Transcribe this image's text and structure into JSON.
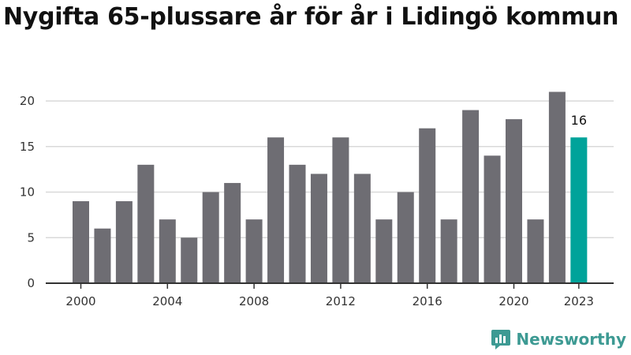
{
  "title": "Nygifta 65-plussare år för år i Lidingö kommun",
  "brand": {
    "name": "Newsworthy",
    "color": "#3d9a93",
    "icon": "newsworthy-logo-icon"
  },
  "colors": {
    "bar": "#6e6d73",
    "highlight": "#00a39a",
    "grid": "#d9d9d9",
    "axis": "#333333"
  },
  "chart_data": {
    "type": "bar",
    "categories": [
      "2000",
      "2001",
      "2002",
      "2003",
      "2004",
      "2005",
      "2006",
      "2007",
      "2008",
      "2009",
      "2010",
      "2011",
      "2012",
      "2013",
      "2014",
      "2015",
      "2016",
      "2017",
      "2018",
      "2019",
      "2020",
      "2021",
      "2022",
      "2023"
    ],
    "values": [
      9,
      6,
      9,
      13,
      7,
      5,
      10,
      11,
      7,
      16,
      13,
      12,
      16,
      12,
      7,
      10,
      17,
      7,
      19,
      14,
      18,
      7,
      21,
      16
    ],
    "x_tick_labels": [
      "2000",
      "2004",
      "2008",
      "2012",
      "2016",
      "2020",
      "2023"
    ],
    "y_ticks": [
      0,
      5,
      10,
      15,
      20
    ],
    "ylim": [
      0,
      21
    ],
    "highlight_category": "2023",
    "highlight_label": "16",
    "xlabel": "",
    "ylabel": "",
    "grid": true
  }
}
